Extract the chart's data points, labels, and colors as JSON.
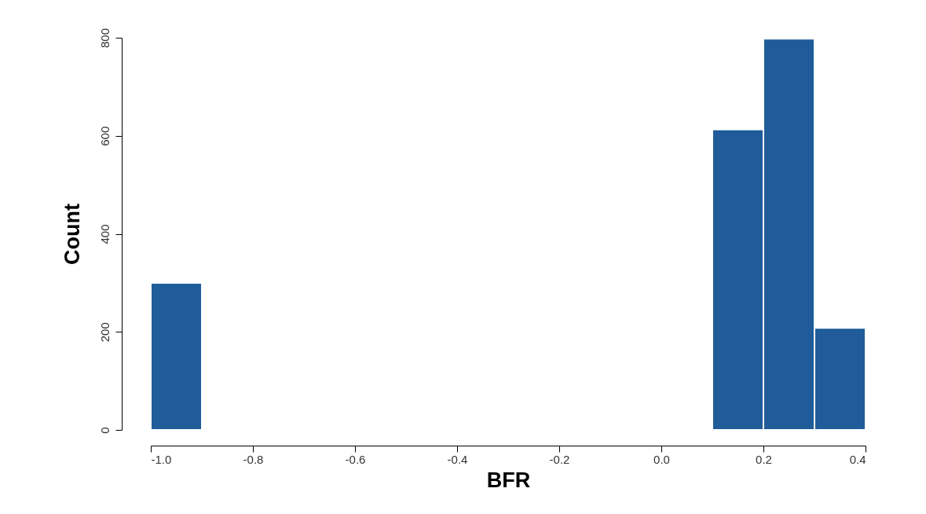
{
  "chart_data": {
    "type": "histogram",
    "xlabel": "BFR",
    "ylabel": "Count",
    "bins": [
      -1.0,
      -0.9,
      -0.8,
      -0.7,
      -0.6,
      -0.5,
      -0.4,
      -0.3,
      -0.2,
      -0.1,
      0.0,
      0.1,
      0.2,
      0.3,
      0.4
    ],
    "values": [
      300,
      0,
      0,
      0,
      0,
      0,
      0,
      0,
      0,
      0,
      0,
      613,
      798,
      208
    ],
    "color": "#1f5c99",
    "xlim": [
      -1.0,
      0.4
    ],
    "xticks": [
      {
        "value": -1.0,
        "label": "-1.0"
      },
      {
        "value": -0.8,
        "label": "-0.8"
      },
      {
        "value": -0.6,
        "label": "-0.6"
      },
      {
        "value": -0.4,
        "label": "-0.4"
      },
      {
        "value": -0.2,
        "label": "-0.2"
      },
      {
        "value": 0,
        "label": "0.0"
      },
      {
        "value": 0.2,
        "label": "0.2"
      },
      {
        "value": 0.4,
        "label": "0.4"
      }
    ],
    "ylim": [
      0,
      800
    ],
    "yticks": [
      0,
      200,
      400,
      600,
      800
    ],
    "grid": false
  }
}
